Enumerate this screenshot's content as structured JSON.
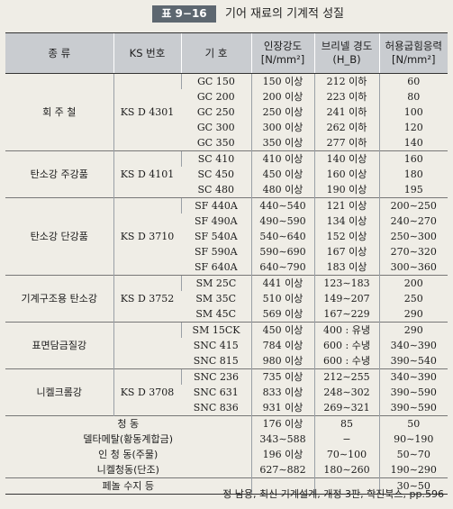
{
  "title": {
    "badge": "표 9−16",
    "text": "기어 재료의 기계적 성질"
  },
  "headers": {
    "type": "종      류",
    "ks": "KS 번호",
    "symbol": "기      호",
    "tensile": [
      "인장강도",
      "[N/mm²]"
    ],
    "brinell": [
      "브리넬 경도",
      "(H_B)"
    ],
    "allow": [
      "허용굽힘응력",
      "[N/mm²]"
    ]
  },
  "groups": [
    {
      "type": "회 주 철",
      "ks": "KS D 4301",
      "rows": [
        [
          "GC 150",
          "150 이상",
          "212 이하",
          "60"
        ],
        [
          "GC 200",
          "200 이상",
          "223 이하",
          "80"
        ],
        [
          "GC 250",
          "250 이상",
          "241 이하",
          "100"
        ],
        [
          "GC 300",
          "300 이상",
          "262 이하",
          "120"
        ],
        [
          "GC 350",
          "350 이상",
          "277 이하",
          "140"
        ]
      ]
    },
    {
      "type": "탄소강 주강품",
      "ks": "KS D 4101",
      "rows": [
        [
          "SC 410",
          "410 이상",
          "140 이상",
          "160"
        ],
        [
          "SC 450",
          "450 이상",
          "160 이상",
          "180"
        ],
        [
          "SC 480",
          "480 이상",
          "190 이상",
          "195"
        ]
      ]
    },
    {
      "type": "탄소강 단강품",
      "ks": "KS D 3710",
      "rows": [
        [
          "SF 440A",
          "440∼540",
          "121 이상",
          "200∼250"
        ],
        [
          "SF 490A",
          "490∼590",
          "134 이상",
          "240∼270"
        ],
        [
          "SF 540A",
          "540∼640",
          "152 이상",
          "250∼300"
        ],
        [
          "SF 590A",
          "590∼690",
          "167 이상",
          "270∼320"
        ],
        [
          "SF 640A",
          "640∼790",
          "183 이상",
          "300∼360"
        ]
      ]
    },
    {
      "type": "기계구조용 탄소강",
      "ks": "KS D 3752",
      "rows": [
        [
          "SM 25C",
          "441 이상",
          "123∼183",
          "200"
        ],
        [
          "SM 35C",
          "510 이상",
          "149∼207",
          "250"
        ],
        [
          "SM 45C",
          "569 이상",
          "167∼229",
          "290"
        ]
      ]
    },
    {
      "type": "표면담금질강",
      "ks": "",
      "rows": [
        [
          "SM 15CK",
          "450 이상",
          "400 : 유냉",
          "290"
        ],
        [
          "SNC 415",
          "784 이상",
          "600 : 수냉",
          "340∼390"
        ],
        [
          "SNC 815",
          "980 이상",
          "600 : 수냉",
          "390∼540"
        ]
      ]
    },
    {
      "type": "니켈크롬강",
      "ks": "KS D 3708",
      "rows": [
        [
          "SNC 236",
          "735 이상",
          "212∼255",
          "340∼390"
        ],
        [
          "SNC 631",
          "833 이상",
          "248∼302",
          "390∼590"
        ],
        [
          "SNC 836",
          "931 이상",
          "269∼321",
          "390∼590"
        ]
      ]
    }
  ],
  "misc": [
    {
      "type": "청      동",
      "tensile": "176 이상",
      "brinell": "85",
      "allow": "50"
    },
    {
      "type": "델타메탈(황동계합금)",
      "tensile": "343∼588",
      "brinell": "−",
      "allow": "90∼190"
    },
    {
      "type": "인 청 동(주물)",
      "tensile": "196 이상",
      "brinell": "70∼100",
      "allow": "50∼70"
    },
    {
      "type": "니켈청동(단조)",
      "tensile": "627∼882",
      "brinell": "180∼260",
      "allow": "190∼290"
    },
    {
      "type": "페놀 수지 등",
      "tensile": "",
      "brinell": "",
      "allow": "30∼50"
    }
  ],
  "citation": "정 남용, 최신 기계설계, 개정 3판, 학진북스, pp.596"
}
